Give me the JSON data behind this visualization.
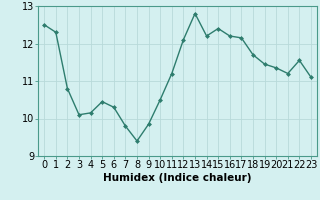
{
  "x": [
    0,
    1,
    2,
    3,
    4,
    5,
    6,
    7,
    8,
    9,
    10,
    11,
    12,
    13,
    14,
    15,
    16,
    17,
    18,
    19,
    20,
    21,
    22,
    23
  ],
  "y": [
    12.5,
    12.3,
    10.8,
    10.1,
    10.15,
    10.45,
    10.3,
    9.8,
    9.4,
    9.85,
    10.5,
    11.2,
    12.1,
    12.8,
    12.2,
    12.4,
    12.2,
    12.15,
    11.7,
    11.45,
    11.35,
    11.2,
    11.55,
    11.1
  ],
  "line_color": "#2e7d6e",
  "marker": "D",
  "marker_size": 2.5,
  "bg_color": "#d4f0f0",
  "grid_color": "#b8dada",
  "xlabel": "Humidex (Indice chaleur)",
  "xlim": [
    -0.5,
    23.5
  ],
  "ylim": [
    9.0,
    13.0
  ],
  "yticks": [
    9,
    10,
    11,
    12,
    13
  ],
  "xtick_labels": [
    "0",
    "1",
    "2",
    "3",
    "4",
    "5",
    "6",
    "7",
    "8",
    "9",
    "10",
    "11",
    "12",
    "13",
    "14",
    "15",
    "16",
    "17",
    "18",
    "19",
    "20",
    "21",
    "22",
    "23"
  ],
  "xlabel_fontsize": 7.5,
  "tick_fontsize": 7.0,
  "line_width": 1.0,
  "spine_color": "#4a9a8a"
}
